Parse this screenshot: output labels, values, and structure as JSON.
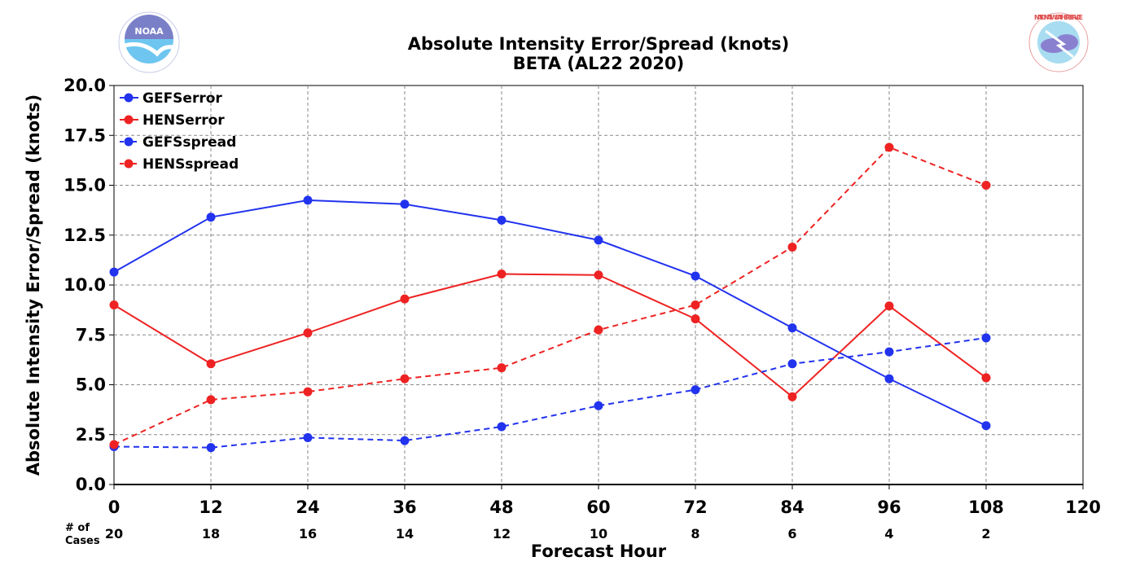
{
  "header": {
    "title": "Absolute Intensity Error/Spread (knots)",
    "subtitle": "BETA (AL22 2020)",
    "left_logo": {
      "icon": "noaa-logo-icon",
      "text": "NOAA"
    },
    "right_logo": {
      "icon": "nws-logo-icon",
      "text": "NATIONAL WEATHER SERVICE"
    }
  },
  "cases": {
    "label_line1": "# of",
    "label_line2": "Cases",
    "values": [
      20,
      18,
      16,
      14,
      12,
      10,
      8,
      6,
      4,
      2
    ]
  },
  "chart_data": {
    "type": "line",
    "title": "Absolute Intensity Error/Spread (knots)",
    "subtitle": "BETA (AL22 2020)",
    "xlabel": "Forecast Hour",
    "ylabel": "Absolute Intensity Error/Spread (knots)",
    "xlim": [
      0,
      120
    ],
    "ylim": [
      0,
      20
    ],
    "xticks": [
      0,
      12,
      24,
      36,
      48,
      60,
      72,
      84,
      96,
      108,
      120
    ],
    "yticks": [
      0.0,
      2.5,
      5.0,
      7.5,
      10.0,
      12.5,
      15.0,
      17.5,
      20.0
    ],
    "xtick_labels": [
      "0",
      "12",
      "24",
      "36",
      "48",
      "60",
      "72",
      "84",
      "96",
      "108",
      "120"
    ],
    "ytick_labels": [
      "0.0",
      "2.5",
      "5.0",
      "7.5",
      "10.0",
      "12.5",
      "15.0",
      "17.5",
      "20.0"
    ],
    "grid": true,
    "legend_position": "top-left",
    "x": [
      0,
      12,
      24,
      36,
      48,
      60,
      72,
      84,
      96,
      108
    ],
    "series": [
      {
        "name": "GEFSerror",
        "color": "#2233ee",
        "dash": "solid",
        "values": [
          10.65,
          13.4,
          14.25,
          14.05,
          13.25,
          12.25,
          10.45,
          7.85,
          5.3,
          2.95
        ]
      },
      {
        "name": "HENSerror",
        "color": "#ee2222",
        "dash": "solid",
        "values": [
          9.0,
          6.05,
          7.6,
          9.3,
          10.55,
          10.5,
          8.3,
          4.4,
          8.95,
          5.35
        ]
      },
      {
        "name": "GEFSspread",
        "color": "#2233ee",
        "dash": "dashed",
        "values": [
          1.9,
          1.85,
          2.35,
          2.2,
          2.9,
          3.95,
          4.75,
          6.05,
          6.65,
          7.35
        ]
      },
      {
        "name": "HENSspread",
        "color": "#ee2222",
        "dash": "dashed",
        "values": [
          2.0,
          4.25,
          4.65,
          5.3,
          5.85,
          7.75,
          9.0,
          11.9,
          16.9,
          15.0
        ]
      }
    ]
  }
}
